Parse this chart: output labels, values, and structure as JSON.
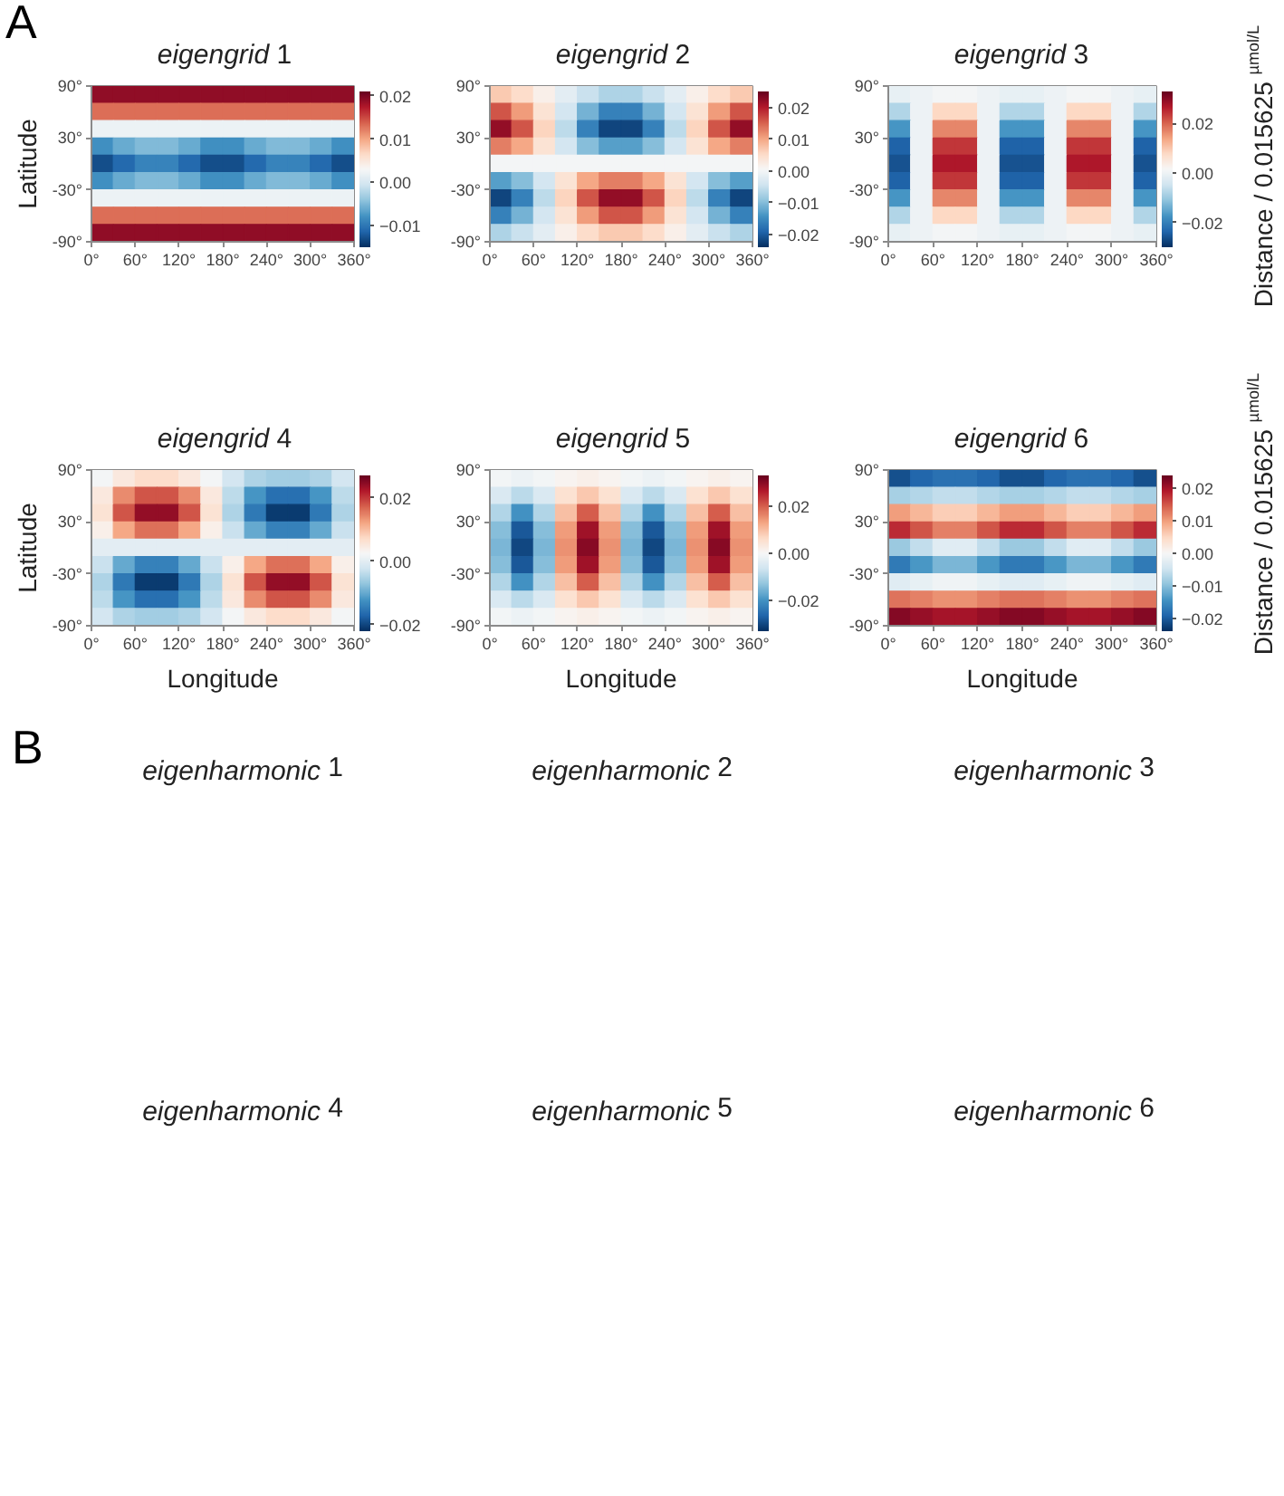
{
  "chart_data": [
    {
      "type": "heatmap",
      "title": "eigengrid 1",
      "ylabel": "Latitude",
      "annotations": [
        "A"
      ],
      "cells": [
        [
          0.019,
          0.019,
          0.019,
          0.019,
          0.019,
          0.019,
          0.019,
          0.019,
          0.019,
          0.019,
          0.019,
          0.019
        ],
        [
          0.013,
          0.013,
          0.013,
          0.013,
          0.013,
          0.013,
          0.013,
          0.013,
          0.013,
          0.013,
          0.013,
          0.013
        ],
        [
          0.002,
          0.002,
          0.002,
          0.002,
          0.002,
          0.002,
          0.002,
          0.002,
          0.002,
          0.002,
          0.002,
          0.002
        ],
        [
          -0.008,
          -0.006,
          -0.005,
          -0.005,
          -0.006,
          -0.008,
          -0.008,
          -0.006,
          -0.005,
          -0.005,
          -0.006,
          -0.008
        ],
        [
          -0.013,
          -0.011,
          -0.009,
          -0.009,
          -0.011,
          -0.013,
          -0.013,
          -0.011,
          -0.009,
          -0.009,
          -0.011,
          -0.013
        ],
        [
          -0.008,
          -0.006,
          -0.005,
          -0.005,
          -0.006,
          -0.008,
          -0.008,
          -0.006,
          -0.005,
          -0.005,
          -0.006,
          -0.008
        ],
        [
          0.002,
          0.002,
          0.002,
          0.002,
          0.002,
          0.002,
          0.002,
          0.002,
          0.002,
          0.002,
          0.002,
          0.002
        ],
        [
          0.013,
          0.013,
          0.013,
          0.013,
          0.013,
          0.013,
          0.013,
          0.013,
          0.013,
          0.013,
          0.013,
          0.013
        ],
        [
          0.019,
          0.019,
          0.019,
          0.019,
          0.019,
          0.019,
          0.019,
          0.019,
          0.019,
          0.019,
          0.019,
          0.019
        ]
      ],
      "clim": [
        -0.015,
        0.021
      ],
      "cticks": [
        {
          "value": -0.01,
          "label": "−0.01"
        },
        {
          "value": 0,
          "label": "0.00"
        },
        {
          "value": 0.01,
          "label": "0.01"
        },
        {
          "value": 0.02,
          "label": "0.02"
        }
      ],
      "xlim": [
        0,
        360
      ],
      "ylim": [
        -90,
        90
      ],
      "xticks": [
        {
          "value": 0,
          "label": "0°"
        },
        {
          "value": 60,
          "label": "60°"
        },
        {
          "value": 120,
          "label": "120°"
        },
        {
          "value": 180,
          "label": "180°"
        },
        {
          "value": 240,
          "label": "240°"
        },
        {
          "value": 300,
          "label": "300°"
        },
        {
          "value": 360,
          "label": "360°"
        }
      ],
      "yticks": [
        {
          "value": -90,
          "label": "-90°"
        },
        {
          "value": -30,
          "label": "-30°"
        },
        {
          "value": 30,
          "label": "30°"
        },
        {
          "value": 90,
          "label": "90°"
        }
      ]
    },
    {
      "type": "heatmap",
      "title": "eigengrid 2",
      "cells": [
        [
          0.007,
          0.005,
          0.002,
          -0.002,
          -0.005,
          -0.007,
          -0.007,
          -0.005,
          -0.002,
          0.002,
          0.005,
          0.007
        ],
        [
          0.016,
          0.011,
          0.004,
          -0.004,
          -0.011,
          -0.016,
          -0.016,
          -0.011,
          -0.004,
          0.004,
          0.011,
          0.016
        ],
        [
          0.022,
          0.016,
          0.006,
          -0.006,
          -0.016,
          -0.022,
          -0.022,
          -0.016,
          -0.006,
          0.006,
          0.016,
          0.022
        ],
        [
          0.013,
          0.01,
          0.004,
          -0.004,
          -0.01,
          -0.013,
          -0.013,
          -0.01,
          -0.004,
          0.004,
          0.01,
          0.013
        ],
        [
          0,
          0,
          0,
          0,
          0,
          0,
          0,
          0,
          0,
          0,
          0,
          0
        ],
        [
          -0.013,
          -0.01,
          -0.004,
          0.004,
          0.01,
          0.013,
          0.013,
          0.01,
          0.004,
          -0.004,
          -0.01,
          -0.013
        ],
        [
          -0.022,
          -0.016,
          -0.006,
          0.006,
          0.016,
          0.022,
          0.022,
          0.016,
          0.006,
          -0.006,
          -0.016,
          -0.022
        ],
        [
          -0.016,
          -0.011,
          -0.004,
          0.004,
          0.011,
          0.016,
          0.016,
          0.011,
          0.004,
          -0.004,
          -0.011,
          -0.016
        ],
        [
          -0.007,
          -0.005,
          -0.002,
          0.002,
          0.005,
          0.007,
          0.007,
          0.005,
          0.002,
          -0.002,
          -0.005,
          -0.007
        ]
      ],
      "clim": [
        -0.024,
        0.025
      ],
      "cticks": [
        {
          "value": -0.02,
          "label": "−0.02"
        },
        {
          "value": -0.01,
          "label": "−0.01"
        },
        {
          "value": 0,
          "label": "0.00"
        },
        {
          "value": 0.01,
          "label": "0.01"
        },
        {
          "value": 0.02,
          "label": "0.02"
        }
      ],
      "xlim": [
        0,
        360
      ],
      "ylim": [
        -90,
        90
      ],
      "xticks": [
        {
          "value": 0,
          "label": "0°"
        },
        {
          "value": 60,
          "label": "60°"
        },
        {
          "value": 120,
          "label": "120°"
        },
        {
          "value": 180,
          "label": "180°"
        },
        {
          "value": 240,
          "label": "240°"
        },
        {
          "value": 300,
          "label": "300°"
        },
        {
          "value": 360,
          "label": "360°"
        }
      ],
      "yticks": [
        {
          "value": -90,
          "label": "-90°"
        },
        {
          "value": -30,
          "label": "-30°"
        },
        {
          "value": 30,
          "label": "30°"
        },
        {
          "value": 90,
          "label": "90°"
        }
      ]
    },
    {
      "type": "heatmap",
      "title": "eigengrid 3",
      "clabel": "Distance / 0.015625 $^{µmol/L}$",
      "cells": [
        [
          -0.001,
          0,
          0.001,
          0.001,
          0,
          -0.001,
          -0.001,
          0,
          0.001,
          0.001,
          0,
          -0.001
        ],
        [
          -0.008,
          0,
          0.008,
          0.008,
          0,
          -0.008,
          -0.008,
          0,
          0.008,
          0.008,
          0,
          -0.008
        ],
        [
          -0.017,
          0,
          0.017,
          0.017,
          0,
          -0.017,
          -0.017,
          0,
          0.017,
          0.017,
          0,
          -0.017
        ],
        [
          -0.024,
          0,
          0.024,
          0.024,
          0,
          -0.024,
          -0.024,
          0,
          0.024,
          0.024,
          0,
          -0.024
        ],
        [
          -0.026,
          0,
          0.027,
          0.027,
          0,
          -0.026,
          -0.026,
          0,
          0.027,
          0.027,
          0,
          -0.026
        ],
        [
          -0.024,
          0,
          0.024,
          0.024,
          0,
          -0.024,
          -0.024,
          0,
          0.024,
          0.024,
          0,
          -0.024
        ],
        [
          -0.017,
          0,
          0.017,
          0.017,
          0,
          -0.017,
          -0.017,
          0,
          0.017,
          0.017,
          0,
          -0.017
        ],
        [
          -0.008,
          0,
          0.008,
          0.008,
          0,
          -0.008,
          -0.008,
          0,
          0.008,
          0.008,
          0,
          -0.008
        ],
        [
          -0.001,
          0,
          0.001,
          0.001,
          0,
          -0.001,
          -0.001,
          0,
          0.001,
          0.001,
          0,
          -0.001
        ]
      ],
      "clim": [
        -0.03,
        0.033
      ],
      "cticks": [
        {
          "value": -0.02,
          "label": "−0.02"
        },
        {
          "value": 0,
          "label": "0.00"
        },
        {
          "value": 0.02,
          "label": "0.02"
        }
      ],
      "xlim": [
        0,
        360
      ],
      "ylim": [
        -90,
        90
      ],
      "xticks": [
        {
          "value": 0,
          "label": "0°"
        },
        {
          "value": 60,
          "label": "60°"
        },
        {
          "value": 120,
          "label": "120°"
        },
        {
          "value": 180,
          "label": "180°"
        },
        {
          "value": 240,
          "label": "240°"
        },
        {
          "value": 300,
          "label": "300°"
        },
        {
          "value": 360,
          "label": "360°"
        }
      ],
      "yticks": [
        {
          "value": -90,
          "label": "-90°"
        },
        {
          "value": -30,
          "label": "-30°"
        },
        {
          "value": 30,
          "label": "30°"
        },
        {
          "value": 90,
          "label": "90°"
        }
      ]
    },
    {
      "type": "heatmap",
      "title": "eigengrid 4",
      "xlabel": "Longitude",
      "ylabel": "Latitude",
      "cells": [
        [
          0.002,
          0.005,
          0.007,
          0.007,
          0.005,
          0.002,
          -0.002,
          -0.005,
          -0.006,
          -0.006,
          -0.005,
          -0.002
        ],
        [
          0.005,
          0.014,
          0.018,
          0.018,
          0.014,
          0.005,
          -0.004,
          -0.012,
          -0.016,
          -0.016,
          -0.012,
          -0.004
        ],
        [
          0.006,
          0.018,
          0.024,
          0.024,
          0.018,
          0.006,
          -0.005,
          -0.015,
          -0.021,
          -0.021,
          -0.015,
          -0.005
        ],
        [
          0.004,
          0.012,
          0.016,
          0.016,
          0.012,
          0.004,
          -0.003,
          -0.01,
          -0.014,
          -0.014,
          -0.01,
          -0.003
        ],
        [
          0,
          0,
          0,
          0,
          0,
          0,
          0,
          0,
          0,
          0,
          0,
          0
        ],
        [
          -0.003,
          -0.01,
          -0.014,
          -0.014,
          -0.01,
          -0.003,
          0.004,
          0.012,
          0.016,
          0.016,
          0.012,
          0.004
        ],
        [
          -0.005,
          -0.015,
          -0.021,
          -0.021,
          -0.015,
          -0.005,
          0.006,
          0.018,
          0.024,
          0.024,
          0.018,
          0.006
        ],
        [
          -0.004,
          -0.012,
          -0.016,
          -0.016,
          -0.012,
          -0.004,
          0.005,
          0.014,
          0.018,
          0.018,
          0.014,
          0.005
        ],
        [
          -0.002,
          -0.005,
          -0.006,
          -0.006,
          -0.005,
          -0.002,
          0.002,
          0.005,
          0.007,
          0.007,
          0.005,
          0.002
        ]
      ],
      "clim": [
        -0.022,
        0.027
      ],
      "cticks": [
        {
          "value": -0.02,
          "label": "−0.02"
        },
        {
          "value": 0,
          "label": "0.00"
        },
        {
          "value": 0.02,
          "label": "0.02"
        }
      ],
      "xlim": [
        0,
        360
      ],
      "ylim": [
        -90,
        90
      ],
      "xticks": [
        {
          "value": 0,
          "label": "0°"
        },
        {
          "value": 60,
          "label": "60°"
        },
        {
          "value": 120,
          "label": "120°"
        },
        {
          "value": 180,
          "label": "180°"
        },
        {
          "value": 240,
          "label": "240°"
        },
        {
          "value": 300,
          "label": "300°"
        },
        {
          "value": 360,
          "label": "360°"
        }
      ],
      "yticks": [
        {
          "value": -90,
          "label": "-90°"
        },
        {
          "value": -30,
          "label": "-30°"
        },
        {
          "value": 30,
          "label": "30°"
        },
        {
          "value": 90,
          "label": "90°"
        }
      ]
    },
    {
      "type": "heatmap",
      "title": "eigengrid 5",
      "xlabel": "Longitude",
      "cells": [
        [
          -0.001,
          -0.002,
          -0.001,
          0.001,
          0.002,
          0.001,
          -0.001,
          -0.002,
          -0.001,
          0.001,
          0.002,
          0.001
        ],
        [
          -0.005,
          -0.009,
          -0.005,
          0.005,
          0.009,
          0.005,
          -0.005,
          -0.009,
          -0.005,
          0.005,
          0.009,
          0.005
        ],
        [
          -0.01,
          -0.02,
          -0.01,
          0.01,
          0.02,
          0.01,
          -0.01,
          -0.02,
          -0.01,
          0.01,
          0.02,
          0.01
        ],
        [
          -0.014,
          -0.028,
          -0.014,
          0.014,
          0.028,
          0.014,
          -0.014,
          -0.028,
          -0.014,
          0.014,
          0.028,
          0.014
        ],
        [
          -0.015,
          -0.03,
          -0.015,
          0.015,
          0.03,
          0.015,
          -0.015,
          -0.03,
          -0.015,
          0.015,
          0.03,
          0.015
        ],
        [
          -0.014,
          -0.028,
          -0.014,
          0.014,
          0.028,
          0.014,
          -0.014,
          -0.028,
          -0.014,
          0.014,
          0.028,
          0.014
        ],
        [
          -0.01,
          -0.02,
          -0.01,
          0.01,
          0.02,
          0.01,
          -0.01,
          -0.02,
          -0.01,
          0.01,
          0.02,
          0.01
        ],
        [
          -0.005,
          -0.009,
          -0.005,
          0.005,
          0.009,
          0.005,
          -0.005,
          -0.009,
          -0.005,
          0.005,
          0.009,
          0.005
        ],
        [
          -0.001,
          -0.002,
          -0.001,
          0.001,
          0.002,
          0.001,
          -0.001,
          -0.002,
          -0.001,
          0.001,
          0.002,
          0.001
        ]
      ],
      "clim": [
        -0.033,
        0.033
      ],
      "cticks": [
        {
          "value": -0.02,
          "label": "−0.02"
        },
        {
          "value": 0,
          "label": "0.00"
        },
        {
          "value": 0.02,
          "label": "0.02"
        }
      ],
      "xlim": [
        0,
        360
      ],
      "ylim": [
        -90,
        90
      ],
      "xticks": [
        {
          "value": 0,
          "label": "0°"
        },
        {
          "value": 60,
          "label": "60°"
        },
        {
          "value": 120,
          "label": "120°"
        },
        {
          "value": 180,
          "label": "180°"
        },
        {
          "value": 240,
          "label": "240°"
        },
        {
          "value": 300,
          "label": "300°"
        },
        {
          "value": 360,
          "label": "360°"
        }
      ],
      "yticks": [
        {
          "value": -90,
          "label": "-90°"
        },
        {
          "value": -30,
          "label": "-30°"
        },
        {
          "value": 30,
          "label": "30°"
        },
        {
          "value": 90,
          "label": "90°"
        }
      ]
    },
    {
      "type": "heatmap",
      "title": "eigengrid 6",
      "xlabel": "Longitude",
      "clabel": "Distance / 0.015625 $^{µmol/L}$",
      "cells": [
        [
          -0.021,
          -0.019,
          -0.018,
          -0.018,
          -0.019,
          -0.021,
          -0.021,
          -0.019,
          -0.018,
          -0.018,
          -0.019,
          -0.021
        ],
        [
          -0.008,
          -0.007,
          -0.006,
          -0.006,
          -0.007,
          -0.008,
          -0.008,
          -0.007,
          -0.006,
          -0.006,
          -0.007,
          -0.008
        ],
        [
          0.01,
          0.008,
          0.006,
          0.006,
          0.008,
          0.01,
          0.01,
          0.008,
          0.006,
          0.006,
          0.008,
          0.01
        ],
        [
          0.018,
          0.015,
          0.012,
          0.012,
          0.015,
          0.018,
          0.018,
          0.015,
          0.012,
          0.012,
          0.015,
          0.018
        ],
        [
          -0.009,
          -0.006,
          -0.003,
          -0.003,
          -0.006,
          -0.009,
          -0.009,
          -0.006,
          -0.003,
          -0.003,
          -0.006,
          -0.009
        ],
        [
          -0.017,
          -0.014,
          -0.011,
          -0.011,
          -0.014,
          -0.017,
          -0.017,
          -0.014,
          -0.011,
          -0.011,
          -0.014,
          -0.017
        ],
        [
          -0.003,
          -0.002,
          -0.001,
          -0.001,
          -0.002,
          -0.003,
          -0.003,
          -0.002,
          -0.001,
          -0.001,
          -0.002,
          -0.003
        ],
        [
          0.013,
          0.012,
          0.011,
          0.011,
          0.012,
          0.013,
          0.013,
          0.012,
          0.011,
          0.011,
          0.012,
          0.013
        ],
        [
          0.022,
          0.021,
          0.02,
          0.02,
          0.021,
          0.022,
          0.022,
          0.021,
          0.02,
          0.02,
          0.021,
          0.022
        ]
      ],
      "clim": [
        -0.024,
        0.024
      ],
      "cticks": [
        {
          "value": -0.02,
          "label": "−0.02"
        },
        {
          "value": -0.01,
          "label": "−0.01"
        },
        {
          "value": 0,
          "label": "0.00"
        },
        {
          "value": 0.01,
          "label": "0.01"
        },
        {
          "value": 0.02,
          "label": "0.02"
        }
      ],
      "xlim": [
        0,
        360
      ],
      "ylim": [
        -90,
        90
      ],
      "xticks": [
        {
          "value": 0,
          "label": "0°"
        },
        {
          "value": 60,
          "label": "60°"
        },
        {
          "value": 120,
          "label": "120°"
        },
        {
          "value": 180,
          "label": "180°"
        },
        {
          "value": 240,
          "label": "240°"
        },
        {
          "value": 300,
          "label": "300°"
        },
        {
          "value": 360,
          "label": "360°"
        }
      ],
      "yticks": [
        {
          "value": -90,
          "label": "-90°"
        },
        {
          "value": -30,
          "label": "-30°"
        },
        {
          "value": 30,
          "label": "30°"
        },
        {
          "value": 90,
          "label": "90°"
        }
      ]
    },
    {
      "type": "other",
      "title": "B",
      "annotations": [
        "eigenharmonic 1",
        "eigenharmonic 2",
        "eigenharmonic 3",
        "eigenharmonic 4",
        "eigenharmonic 5",
        "eigenharmonic 6"
      ]
    }
  ]
}
